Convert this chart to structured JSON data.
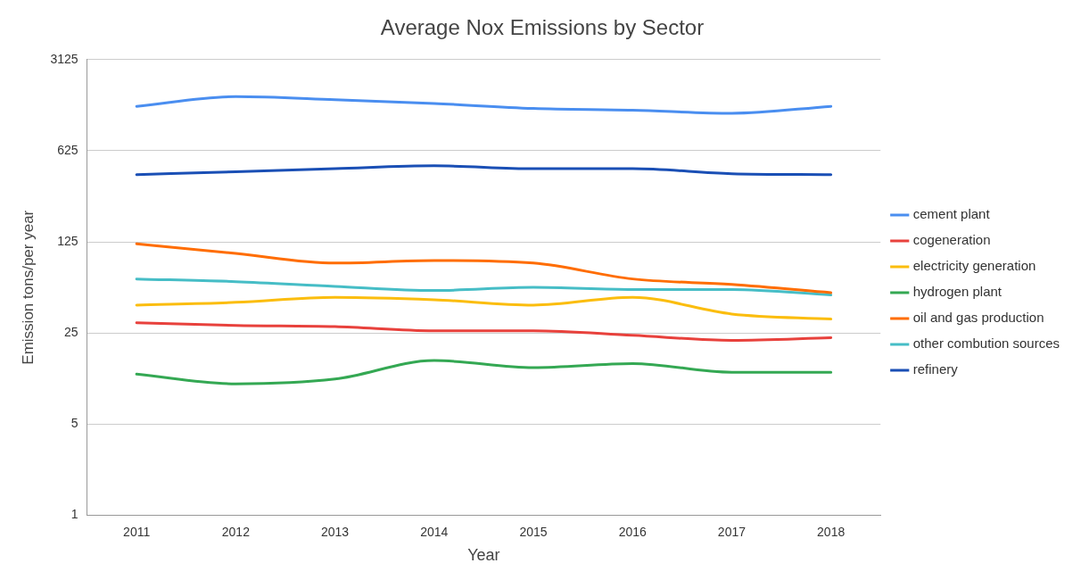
{
  "chart_data": {
    "type": "line",
    "title": "Average Nox Emissions by Sector",
    "xlabel": "Year",
    "ylabel": "Emission tons/per year",
    "categories": [
      "2011",
      "2012",
      "2013",
      "2014",
      "2015",
      "2016",
      "2017",
      "2018"
    ],
    "log": "y",
    "ylim": [
      1,
      3125
    ],
    "yticks": [
      1,
      5,
      25,
      125,
      625,
      3125
    ],
    "grid": "y",
    "legend": "right",
    "marker": "none",
    "line_style": "solid",
    "series": [
      {
        "name": "cement plant",
        "color": "#4a8ef0",
        "values": [
          1370,
          1625,
          1540,
          1440,
          1320,
          1280,
          1210,
          1370
        ]
      },
      {
        "name": "cogeneration",
        "color": "#e8413c",
        "values": [
          30,
          28.6,
          28,
          26,
          26,
          24,
          22,
          23
        ]
      },
      {
        "name": "electricity generation",
        "color": "#fbbd0e",
        "values": [
          41,
          43,
          47,
          45,
          41,
          47,
          35,
          32
        ]
      },
      {
        "name": "hydrogen plant",
        "color": "#34a853",
        "values": [
          12.1,
          10.2,
          11.1,
          15.4,
          13.6,
          14.6,
          12.5,
          12.5
        ]
      },
      {
        "name": "oil and gas production",
        "color": "#ff6d01",
        "values": [
          121,
          102,
          86,
          90,
          86,
          65,
          59,
          51
        ]
      },
      {
        "name": "other combution sources",
        "color": "#46bdc6",
        "values": [
          65,
          62,
          57,
          53,
          56,
          54,
          54,
          49
        ]
      },
      {
        "name": "refinery",
        "color": "#1a4fb5",
        "values": [
          410,
          432,
          455,
          479,
          455,
          455,
          417,
          410
        ]
      }
    ]
  }
}
